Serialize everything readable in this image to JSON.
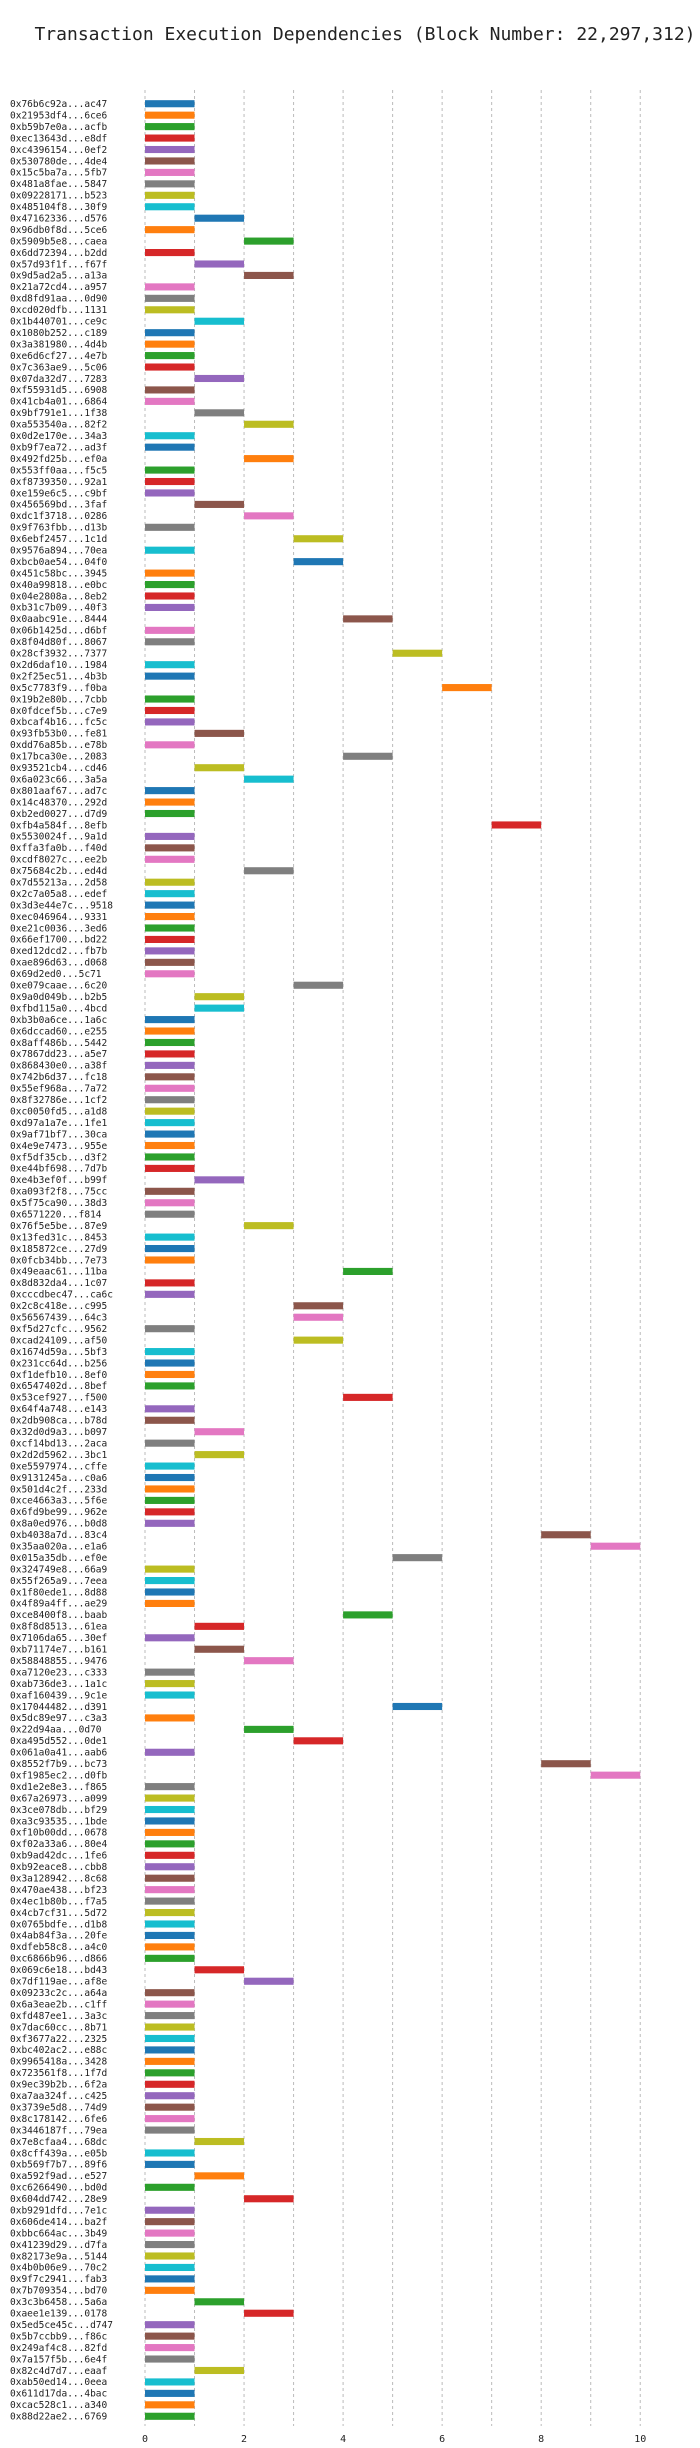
{
  "chart_data": {
    "type": "gantt",
    "title": "Transaction Execution Dependencies (Block Number: 22,297,312)",
    "xlim": [
      0,
      10.5
    ],
    "x_ticks": [
      0,
      2,
      4,
      6,
      8,
      10
    ],
    "grid": "vertical dashed",
    "colors": [
      "#1f77b4",
      "#ff7f0e",
      "#2ca02c",
      "#d62728",
      "#9467bd",
      "#8c564b",
      "#e377c2",
      "#7f7f7f",
      "#bcbd22",
      "#17becf"
    ],
    "rows": [
      {
        "tx": "0x76b6c92a...ac47",
        "start": 0,
        "end": 1
      },
      {
        "tx": "0x21953df4...6ce6",
        "start": 0,
        "end": 1
      },
      {
        "tx": "0xb59b7e0a...acfb",
        "start": 0,
        "end": 1
      },
      {
        "tx": "0xec13643d...e8df",
        "start": 0,
        "end": 1
      },
      {
        "tx": "0xc4396154...0ef2",
        "start": 0,
        "end": 1
      },
      {
        "tx": "0x530780de...4de4",
        "start": 0,
        "end": 1
      },
      {
        "tx": "0x15c5ba7a...5fb7",
        "start": 0,
        "end": 1
      },
      {
        "tx": "0x481a8fae...5847",
        "start": 0,
        "end": 1
      },
      {
        "tx": "0x09228171...b523",
        "start": 0,
        "end": 1
      },
      {
        "tx": "0x485104f8...30f9",
        "start": 0,
        "end": 1
      },
      {
        "tx": "0x47162336...d576",
        "start": 1,
        "end": 2
      },
      {
        "tx": "0x96db0f8d...5ce6",
        "start": 0,
        "end": 1
      },
      {
        "tx": "0x5909b5e8...caea",
        "start": 2,
        "end": 3
      },
      {
        "tx": "0x6dd72394...b2dd",
        "start": 0,
        "end": 1
      },
      {
        "tx": "0x57d93f1f...f67f",
        "start": 1,
        "end": 2
      },
      {
        "tx": "0x9d5ad2a5...a13a",
        "start": 2,
        "end": 3
      },
      {
        "tx": "0x21a72cd4...a957",
        "start": 0,
        "end": 1
      },
      {
        "tx": "0xd8fd91aa...0d90",
        "start": 0,
        "end": 1
      },
      {
        "tx": "0xcd020dfb...1131",
        "start": 0,
        "end": 1
      },
      {
        "tx": "0x1b440701...ce9c",
        "start": 1,
        "end": 2
      },
      {
        "tx": "0x1080b252...c189",
        "start": 0,
        "end": 1
      },
      {
        "tx": "0x3a381980...4d4b",
        "start": 0,
        "end": 1
      },
      {
        "tx": "0xe6d6cf27...4e7b",
        "start": 0,
        "end": 1
      },
      {
        "tx": "0x7c363ae9...5c06",
        "start": 0,
        "end": 1
      },
      {
        "tx": "0x07da32d7...7283",
        "start": 1,
        "end": 2
      },
      {
        "tx": "0xf55931d5...6908",
        "start": 0,
        "end": 1
      },
      {
        "tx": "0x41cb4a01...6864",
        "start": 0,
        "end": 1
      },
      {
        "tx": "0x9bf791e1...1f38",
        "start": 1,
        "end": 2
      },
      {
        "tx": "0xa553540a...82f2",
        "start": 2,
        "end": 3
      },
      {
        "tx": "0x0d2e170e...34a3",
        "start": 0,
        "end": 1
      },
      {
        "tx": "0xb9f7ea72...ad3f",
        "start": 0,
        "end": 1
      },
      {
        "tx": "0x492fd25b...ef0a",
        "start": 2,
        "end": 3
      },
      {
        "tx": "0x553ff0aa...f5c5",
        "start": 0,
        "end": 1
      },
      {
        "tx": "0xf8739350...92a1",
        "start": 0,
        "end": 1
      },
      {
        "tx": "0xe159e6c5...c9bf",
        "start": 0,
        "end": 1
      },
      {
        "tx": "0x456569bd...3faf",
        "start": 1,
        "end": 2
      },
      {
        "tx": "0xdc1f3718...0286",
        "start": 2,
        "end": 3
      },
      {
        "tx": "0x9f763fbb...d13b",
        "start": 0,
        "end": 1
      },
      {
        "tx": "0x6ebf2457...1c1d",
        "start": 3,
        "end": 4
      },
      {
        "tx": "0x9576a894...70ea",
        "start": 0,
        "end": 1
      },
      {
        "tx": "0xbcb0ae54...04f0",
        "start": 3,
        "end": 4
      },
      {
        "tx": "0x451c58bc...3945",
        "start": 0,
        "end": 1
      },
      {
        "tx": "0x40a99818...e0bc",
        "start": 0,
        "end": 1
      },
      {
        "tx": "0x04e2808a...8eb2",
        "start": 0,
        "end": 1
      },
      {
        "tx": "0xb31c7b09...40f3",
        "start": 0,
        "end": 1
      },
      {
        "tx": "0x0aabc91e...8444",
        "start": 4,
        "end": 5
      },
      {
        "tx": "0x06b1425d...d6bf",
        "start": 0,
        "end": 1
      },
      {
        "tx": "0x8f04d80f...8067",
        "start": 0,
        "end": 1
      },
      {
        "tx": "0x28cf3932...7377",
        "start": 5,
        "end": 6
      },
      {
        "tx": "0x2d6daf10...1984",
        "start": 0,
        "end": 1
      },
      {
        "tx": "0x2f25ec51...4b3b",
        "start": 0,
        "end": 1
      },
      {
        "tx": "0x5c7783f9...f0ba",
        "start": 6,
        "end": 7
      },
      {
        "tx": "0x19b2e80b...7cbb",
        "start": 0,
        "end": 1
      },
      {
        "tx": "0x0fdcef5b...c7e9",
        "start": 0,
        "end": 1
      },
      {
        "tx": "0xbcaf4b16...fc5c",
        "start": 0,
        "end": 1
      },
      {
        "tx": "0x93fb53b0...fe81",
        "start": 1,
        "end": 2
      },
      {
        "tx": "0xdd76a85b...e78b",
        "start": 0,
        "end": 1
      },
      {
        "tx": "0x17bca30e...2083",
        "start": 4,
        "end": 5
      },
      {
        "tx": "0x93521cb4...cd46",
        "start": 1,
        "end": 2
      },
      {
        "tx": "0x6a023c66...3a5a",
        "start": 2,
        "end": 3
      },
      {
        "tx": "0x801aaf67...ad7c",
        "start": 0,
        "end": 1
      },
      {
        "tx": "0x14c48370...292d",
        "start": 0,
        "end": 1
      },
      {
        "tx": "0xb2ed0027...d7d9",
        "start": 0,
        "end": 1
      },
      {
        "tx": "0xfb4a584f...8efb",
        "start": 7,
        "end": 8
      },
      {
        "tx": "0x5530024f...9a1d",
        "start": 0,
        "end": 1
      },
      {
        "tx": "0xffa3fa0b...f40d",
        "start": 0,
        "end": 1
      },
      {
        "tx": "0xcdf8027c...ee2b",
        "start": 0,
        "end": 1
      },
      {
        "tx": "0x75684c2b...ed4d",
        "start": 2,
        "end": 3
      },
      {
        "tx": "0x7d55213a...2d58",
        "start": 0,
        "end": 1
      },
      {
        "tx": "0x2c7a05a8...edef",
        "start": 0,
        "end": 1
      },
      {
        "tx": "0x3d3e44e7c...9518",
        "start": 0,
        "end": 1
      },
      {
        "tx": "0xec046964...9331",
        "start": 0,
        "end": 1
      },
      {
        "tx": "0xe21c0036...3ed6",
        "start": 0,
        "end": 1
      },
      {
        "tx": "0x66ef1700...bd22",
        "start": 0,
        "end": 1
      },
      {
        "tx": "0xed12dcd2...fb7b",
        "start": 0,
        "end": 1
      },
      {
        "tx": "0xae896d63...d068",
        "start": 0,
        "end": 1
      },
      {
        "tx": "0x69d2ed0...5c71",
        "start": 0,
        "end": 1
      },
      {
        "tx": "0xe079caae...6c20",
        "start": 3,
        "end": 4
      },
      {
        "tx": "0x9a0d049b...b2b5",
        "start": 1,
        "end": 2
      },
      {
        "tx": "0xfbd115a0...4bcd",
        "start": 1,
        "end": 2
      },
      {
        "tx": "0xb3b0a6ce...1a6c",
        "start": 0,
        "end": 1
      },
      {
        "tx": "0x6dccad60...e255",
        "start": 0,
        "end": 1
      },
      {
        "tx": "0x8aff486b...5442",
        "start": 0,
        "end": 1
      },
      {
        "tx": "0x7867dd23...a5e7",
        "start": 0,
        "end": 1
      },
      {
        "tx": "0x868430e0...a38f",
        "start": 0,
        "end": 1
      },
      {
        "tx": "0x742b6d37...fc18",
        "start": 0,
        "end": 1
      },
      {
        "tx": "0x55ef968a...7a72",
        "start": 0,
        "end": 1
      },
      {
        "tx": "0x8f32786e...1cf2",
        "start": 0,
        "end": 1
      },
      {
        "tx": "0xc0050fd5...a1d8",
        "start": 0,
        "end": 1
      },
      {
        "tx": "0xd97a1a7e...1fe1",
        "start": 0,
        "end": 1
      },
      {
        "tx": "0x9af71bf7...30ca",
        "start": 0,
        "end": 1
      },
      {
        "tx": "0x4e9e7473...955e",
        "start": 0,
        "end": 1
      },
      {
        "tx": "0xf5df35cb...d3f2",
        "start": 0,
        "end": 1
      },
      {
        "tx": "0xe44bf698...7d7b",
        "start": 0,
        "end": 1
      },
      {
        "tx": "0xe4b3ef0f...b99f",
        "start": 1,
        "end": 2
      },
      {
        "tx": "0xa093f2f8...75cc",
        "start": 0,
        "end": 1
      },
      {
        "tx": "0x5f75ca90...38d3",
        "start": 0,
        "end": 1
      },
      {
        "tx": "0x6571220...f814",
        "start": 0,
        "end": 1
      },
      {
        "tx": "0x76f5e5be...87e9",
        "start": 2,
        "end": 3
      },
      {
        "tx": "0x13fed31c...8453",
        "start": 0,
        "end": 1
      },
      {
        "tx": "0x185872ce...27d9",
        "start": 0,
        "end": 1
      },
      {
        "tx": "0x0fcb34bb...7e73",
        "start": 0,
        "end": 1
      },
      {
        "tx": "0x49eaac61...11ba",
        "start": 4,
        "end": 5
      },
      {
        "tx": "0x8d832da4...1c07",
        "start": 0,
        "end": 1
      },
      {
        "tx": "0xcccdbec47...ca6c",
        "start": 0,
        "end": 1
      },
      {
        "tx": "0x2c8c418e...c995",
        "start": 3,
        "end": 4
      },
      {
        "tx": "0x56567439...64c3",
        "start": 3,
        "end": 4
      },
      {
        "tx": "0xf5d27cfc...9562",
        "start": 0,
        "end": 1
      },
      {
        "tx": "0xcad24109...af50",
        "start": 3,
        "end": 4
      },
      {
        "tx": "0x1674d59a...5bf3",
        "start": 0,
        "end": 1
      },
      {
        "tx": "0x231cc64d...b256",
        "start": 0,
        "end": 1
      },
      {
        "tx": "0xf1defb10...8ef0",
        "start": 0,
        "end": 1
      },
      {
        "tx": "0x6547402d...8bef",
        "start": 0,
        "end": 1
      },
      {
        "tx": "0x53cef927...f500",
        "start": 4,
        "end": 5
      },
      {
        "tx": "0x64f4a748...e143",
        "start": 0,
        "end": 1
      },
      {
        "tx": "0x2db908ca...b78d",
        "start": 0,
        "end": 1
      },
      {
        "tx": "0x32d0d9a3...b097",
        "start": 1,
        "end": 2
      },
      {
        "tx": "0xcf14bd13...2aca",
        "start": 0,
        "end": 1
      },
      {
        "tx": "0x2d2d5962...3bc1",
        "start": 1,
        "end": 2
      },
      {
        "tx": "0xe5597974...cffe",
        "start": 0,
        "end": 1
      },
      {
        "tx": "0x9131245a...c0a6",
        "start": 0,
        "end": 1
      },
      {
        "tx": "0x501d4c2f...233d",
        "start": 0,
        "end": 1
      },
      {
        "tx": "0xce4663a3...5f6e",
        "start": 0,
        "end": 1
      },
      {
        "tx": "0x6fd9be99...962e",
        "start": 0,
        "end": 1
      },
      {
        "tx": "0x8a0ed976...b0d8",
        "start": 0,
        "end": 1
      },
      {
        "tx": "0xb4038a7d...83c4",
        "start": 8,
        "end": 9
      },
      {
        "tx": "0x35aa020a...e1a6",
        "start": 9,
        "end": 10
      },
      {
        "tx": "0x015a35db...ef0e",
        "start": 5,
        "end": 6
      },
      {
        "tx": "0x324749e8...66a9",
        "start": 0,
        "end": 1
      },
      {
        "tx": "0x55f265a9...7eea",
        "start": 0,
        "end": 1
      },
      {
        "tx": "0x1f80ede1...8d88",
        "start": 0,
        "end": 1
      },
      {
        "tx": "0x4f89a4ff...ae29",
        "start": 0,
        "end": 1
      },
      {
        "tx": "0xce8400f8...baab",
        "start": 4,
        "end": 5
      },
      {
        "tx": "0x8f8d8513...61ea",
        "start": 1,
        "end": 2
      },
      {
        "tx": "0x7106da65...30ef",
        "start": 0,
        "end": 1
      },
      {
        "tx": "0xb71174e7...b161",
        "start": 1,
        "end": 2
      },
      {
        "tx": "0x58848855...9476",
        "start": 2,
        "end": 3
      },
      {
        "tx": "0xa7120e23...c333",
        "start": 0,
        "end": 1
      },
      {
        "tx": "0xab736de3...1a1c",
        "start": 0,
        "end": 1
      },
      {
        "tx": "0xaf160439...9c1e",
        "start": 0,
        "end": 1
      },
      {
        "tx": "0x17044482...d391",
        "start": 5,
        "end": 6
      },
      {
        "tx": "0x5dc89e97...c3a3",
        "start": 0,
        "end": 1
      },
      {
        "tx": "0x22d94aa...0d70",
        "start": 2,
        "end": 3
      },
      {
        "tx": "0xa495d552...0de1",
        "start": 3,
        "end": 4
      },
      {
        "tx": "0x061a0a41...aab6",
        "start": 0,
        "end": 1
      },
      {
        "tx": "0x8552f7b9...bc73",
        "start": 8,
        "end": 9
      },
      {
        "tx": "0xf1985ec2...d0fb",
        "start": 9,
        "end": 10
      },
      {
        "tx": "0xd1e2e8e3...f865",
        "start": 0,
        "end": 1
      },
      {
        "tx": "0x67a26973...a099",
        "start": 0,
        "end": 1
      },
      {
        "tx": "0x3ce078db...bf29",
        "start": 0,
        "end": 1
      },
      {
        "tx": "0xa3c93535...1bde",
        "start": 0,
        "end": 1
      },
      {
        "tx": "0xf10b00dd...0678",
        "start": 0,
        "end": 1
      },
      {
        "tx": "0xf02a33a6...80e4",
        "start": 0,
        "end": 1
      },
      {
        "tx": "0xb9ad42dc...1fe6",
        "start": 0,
        "end": 1
      },
      {
        "tx": "0xb92eace8...cbb8",
        "start": 0,
        "end": 1
      },
      {
        "tx": "0x3a128942...8c68",
        "start": 0,
        "end": 1
      },
      {
        "tx": "0x470ae438...bf23",
        "start": 0,
        "end": 1
      },
      {
        "tx": "0x4ec1b80b...f7a5",
        "start": 0,
        "end": 1
      },
      {
        "tx": "0x4cb7cf31...5d72",
        "start": 0,
        "end": 1
      },
      {
        "tx": "0x0765bdfe...d1b8",
        "start": 0,
        "end": 1
      },
      {
        "tx": "0x4ab84f3a...20fe",
        "start": 0,
        "end": 1
      },
      {
        "tx": "0xdfeb58c8...a4c0",
        "start": 0,
        "end": 1
      },
      {
        "tx": "0xc6866b96...d866",
        "start": 0,
        "end": 1
      },
      {
        "tx": "0x069c6e18...bd43",
        "start": 1,
        "end": 2
      },
      {
        "tx": "0x7df119ae...af8e",
        "start": 2,
        "end": 3
      },
      {
        "tx": "0x09233c2c...a64a",
        "start": 0,
        "end": 1
      },
      {
        "tx": "0x6a3eae2b...c1ff",
        "start": 0,
        "end": 1
      },
      {
        "tx": "0xfd487ee1...3a3c",
        "start": 0,
        "end": 1
      },
      {
        "tx": "0x7dac60cc...8b71",
        "start": 0,
        "end": 1
      },
      {
        "tx": "0xf3677a22...2325",
        "start": 0,
        "end": 1
      },
      {
        "tx": "0xbc402ac2...e88c",
        "start": 0,
        "end": 1
      },
      {
        "tx": "0x9965418a...3428",
        "start": 0,
        "end": 1
      },
      {
        "tx": "0x723561f8...1f7d",
        "start": 0,
        "end": 1
      },
      {
        "tx": "0x9ec39b2b...6f2a",
        "start": 0,
        "end": 1
      },
      {
        "tx": "0xa7aa324f...c425",
        "start": 0,
        "end": 1
      },
      {
        "tx": "0x3739e5d8...74d9",
        "start": 0,
        "end": 1
      },
      {
        "tx": "0x8c178142...6fe6",
        "start": 0,
        "end": 1
      },
      {
        "tx": "0x3446187f...79ea",
        "start": 0,
        "end": 1
      },
      {
        "tx": "0x7e8cfaa4...68dc",
        "start": 1,
        "end": 2
      },
      {
        "tx": "0x8cff439a...e05b",
        "start": 0,
        "end": 1
      },
      {
        "tx": "0xb569f7b7...89f6",
        "start": 0,
        "end": 1
      },
      {
        "tx": "0xa592f9ad...e527",
        "start": 1,
        "end": 2
      },
      {
        "tx": "0xc6266490...bd0d",
        "start": 0,
        "end": 1
      },
      {
        "tx": "0x604dd742...28e9",
        "start": 2,
        "end": 3
      },
      {
        "tx": "0xb9291dfd...7e1c",
        "start": 0,
        "end": 1
      },
      {
        "tx": "0x606de414...ba2f",
        "start": 0,
        "end": 1
      },
      {
        "tx": "0xbbc664ac...3b49",
        "start": 0,
        "end": 1
      },
      {
        "tx": "0x41239d29...d7fa",
        "start": 0,
        "end": 1
      },
      {
        "tx": "0x82173e9a...5144",
        "start": 0,
        "end": 1
      },
      {
        "tx": "0x4b0b06e9...70c2",
        "start": 0,
        "end": 1
      },
      {
        "tx": "0x9f7c2941...fab3",
        "start": 0,
        "end": 1
      },
      {
        "tx": "0x7b709354...bd70",
        "start": 0,
        "end": 1
      },
      {
        "tx": "0x3c3b6458...5a6a",
        "start": 1,
        "end": 2
      },
      {
        "tx": "0xaee1e139...0178",
        "start": 2,
        "end": 3
      },
      {
        "tx": "0x5ed5ce45c...d747",
        "start": 0,
        "end": 1
      },
      {
        "tx": "0x5b7ccbb9...f86c",
        "start": 0,
        "end": 1
      },
      {
        "tx": "0x249af4c8...82fd",
        "start": 0,
        "end": 1
      },
      {
        "tx": "0x7a157f5b...6e4f",
        "start": 0,
        "end": 1
      },
      {
        "tx": "0x82c4d7d7...eaaf",
        "start": 1,
        "end": 2
      },
      {
        "tx": "0xab50ed14...0eea",
        "start": 0,
        "end": 1
      },
      {
        "tx": "0x611d17da...4bac",
        "start": 0,
        "end": 1
      },
      {
        "tx": "0xcac528c1...a340",
        "start": 0,
        "end": 1
      },
      {
        "tx": "0x88d22ae2...6769",
        "start": 0,
        "end": 1
      }
    ]
  }
}
